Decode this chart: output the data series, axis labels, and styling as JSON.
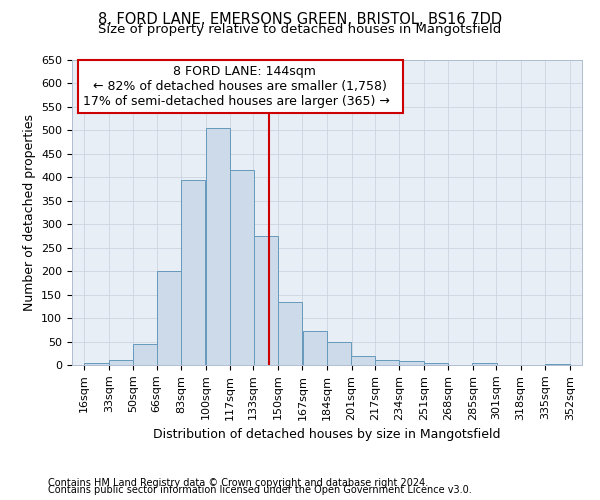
{
  "title1": "8, FORD LANE, EMERSONS GREEN, BRISTOL, BS16 7DD",
  "title2": "Size of property relative to detached houses in Mangotsfield",
  "xlabel": "Distribution of detached houses by size in Mangotsfield",
  "ylabel": "Number of detached properties",
  "footnote1": "Contains HM Land Registry data © Crown copyright and database right 2024.",
  "footnote2": "Contains public sector information licensed under the Open Government Licence v3.0.",
  "annotation_title": "8 FORD LANE: 144sqm",
  "annotation_line1": "← 82% of detached houses are smaller (1,758)",
  "annotation_line2": "17% of semi-detached houses are larger (365) →",
  "bins": [
    16,
    33,
    50,
    66,
    83,
    100,
    117,
    133,
    150,
    167,
    184,
    201,
    217,
    234,
    251,
    268,
    285,
    301,
    318,
    335,
    352
  ],
  "bin_labels": [
    "16sqm",
    "33sqm",
    "50sqm",
    "66sqm",
    "83sqm",
    "100sqm",
    "117sqm",
    "133sqm",
    "150sqm",
    "167sqm",
    "184sqm",
    "201sqm",
    "217sqm",
    "234sqm",
    "251sqm",
    "268sqm",
    "285sqm",
    "301sqm",
    "318sqm",
    "335sqm",
    "352sqm"
  ],
  "counts": [
    5,
    10,
    45,
    200,
    395,
    505,
    415,
    275,
    135,
    72,
    50,
    20,
    10,
    8,
    5,
    0,
    5,
    0,
    0,
    3
  ],
  "bar_color": "#ccdaea",
  "bar_edge_color": "#6699bb",
  "vline_color": "#cc0000",
  "vline_x": 144,
  "ylim": [
    0,
    650
  ],
  "yticks": [
    0,
    50,
    100,
    150,
    200,
    250,
    300,
    350,
    400,
    450,
    500,
    550,
    600,
    650
  ],
  "grid_color": "#ccd4e0",
  "bg_color": "#e8eef5",
  "annotation_box_color": "#ffffff",
  "annotation_box_edge": "#cc0000",
  "title1_fontsize": 10.5,
  "title2_fontsize": 9.5,
  "axis_label_fontsize": 9,
  "tick_fontsize": 8,
  "annotation_fontsize": 9,
  "footnote_fontsize": 7
}
